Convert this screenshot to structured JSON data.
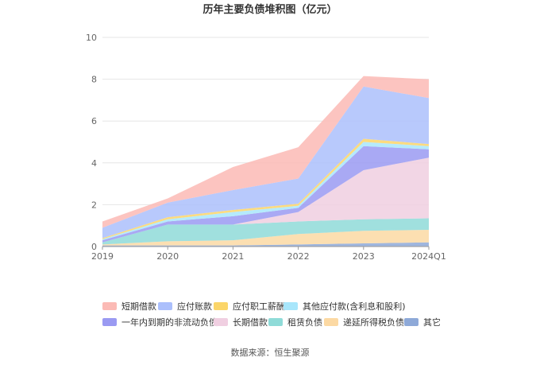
{
  "chart_data": {
    "type": "area",
    "title": "历年主要负债堆积图（亿元）",
    "categories": [
      "2019",
      "2020",
      "2021",
      "2022",
      "2023",
      "2024Q1"
    ],
    "ylim": [
      0,
      10
    ],
    "yticks": [
      "0",
      "2",
      "4",
      "6",
      "8",
      "10"
    ],
    "grid": true,
    "legend_position": "bottom",
    "series": [
      {
        "name": "其它",
        "color": "#8ea9d8",
        "values": [
          0.05,
          0.05,
          0.05,
          0.1,
          0.15,
          0.2
        ]
      },
      {
        "name": "递延所得税负债",
        "color": "#fcd9a3",
        "values": [
          0.05,
          0.2,
          0.25,
          0.5,
          0.6,
          0.6
        ]
      },
      {
        "name": "租赁负债",
        "color": "#8fdbd8",
        "values": [
          0.1,
          0.8,
          0.75,
          0.6,
          0.55,
          0.55
        ]
      },
      {
        "name": "长期借款",
        "color": "#f0cfe1",
        "values": [
          0.0,
          0.0,
          0.0,
          0.45,
          2.35,
          2.9
        ]
      },
      {
        "name": "一年内到期的非流动负债",
        "color": "#9a9af2",
        "values": [
          0.1,
          0.15,
          0.4,
          0.2,
          1.15,
          0.4
        ]
      },
      {
        "name": "其他应付款(含利息和股利)",
        "color": "#a8e6fb",
        "values": [
          0.05,
          0.1,
          0.2,
          0.1,
          0.2,
          0.15
        ]
      },
      {
        "name": "应付职工薪酬",
        "color": "#fbd569",
        "values": [
          0.05,
          0.1,
          0.1,
          0.1,
          0.15,
          0.1
        ]
      },
      {
        "name": "应付账款",
        "color": "#abbffc",
        "values": [
          0.5,
          0.7,
          0.95,
          1.2,
          2.5,
          2.2
        ]
      },
      {
        "name": "短期借款",
        "color": "#fbbab5",
        "values": [
          0.3,
          0.2,
          1.1,
          1.5,
          0.5,
          0.9
        ]
      }
    ],
    "legend_order": [
      "短期借款",
      "应付账款",
      "应付职工薪酬",
      "其他应付款(含利息和股利)",
      "一年内到期的非流动负债",
      "长期借款",
      "租赁负债",
      "递延所得税负债",
      "其它"
    ],
    "source": "数据来源：恒生聚源"
  }
}
